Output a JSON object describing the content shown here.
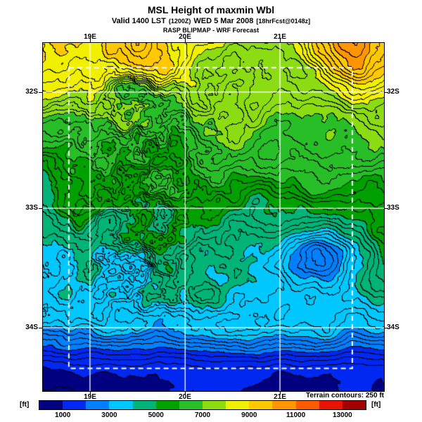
{
  "header": {
    "title": "MSL Height of maxmin Wbl",
    "valid_prefix": "Valid 1400 LST",
    "valid_zulu": "(1200Z)",
    "valid_date": "WED 5 Mar 2008",
    "valid_fcst": "[18hrFcst@0148z]",
    "model_line": "RASP BLIPMAP - WRF Forecast"
  },
  "map": {
    "lat_labels": [
      "32S",
      "33S",
      "34S"
    ],
    "lon_labels": [
      "19E",
      "20E",
      "21E"
    ],
    "terrain_note": "Terrain contours: 250 ft",
    "grid_color": "#ffffff",
    "contour_color": "#000000"
  },
  "colorbar": {
    "unit_left": "[ft]",
    "unit_right": "[ft]",
    "ticks": [
      "1000",
      "3000",
      "5000",
      "7000",
      "9000",
      "11000",
      "13000"
    ],
    "palette": [
      "#000080",
      "#0028F0",
      "#0080FF",
      "#00C8FF",
      "#00B478",
      "#00A000",
      "#28BE28",
      "#8CDC14",
      "#F0F000",
      "#FFC800",
      "#FF9600",
      "#FF5A00",
      "#E61400",
      "#A00000"
    ]
  },
  "chart_data": {
    "type": "heatmap",
    "title": "MSL Height of maxmin Wbl",
    "units": "ft",
    "contour_interval_ft": 250,
    "colorbar_ticks_ft": [
      1000,
      3000,
      5000,
      7000,
      9000,
      11000,
      13000
    ],
    "scale_bounds_ft": [
      0,
      1000,
      2000,
      3000,
      4000,
      5000,
      6000,
      7000,
      8000,
      9000,
      10000,
      11000,
      12000,
      13000,
      14000
    ],
    "scale_colors": [
      "#000080",
      "#0028F0",
      "#0080FF",
      "#00C8FF",
      "#00B478",
      "#00A000",
      "#28BE28",
      "#8CDC14",
      "#F0F000",
      "#FFC800",
      "#FF9600",
      "#FF5A00",
      "#E61400",
      "#A00000"
    ],
    "lon_gridlines": [
      "19E",
      "20E",
      "21E"
    ],
    "lat_gridlines": [
      "32S",
      "33S",
      "34S"
    ],
    "legend_position": "bottom",
    "notes": "Filled contour map over Western Cape region; black terrain contour lines every 250 ft; high values (orange/red 9000-13000 ft) across northern band and NE corner; dense contour ridges in west-central band; low values (blue 1000-3000 ft) along southern edge and in an east-central depression; white solid lat/lon gridlines and white dashed inner model-domain boundary"
  }
}
